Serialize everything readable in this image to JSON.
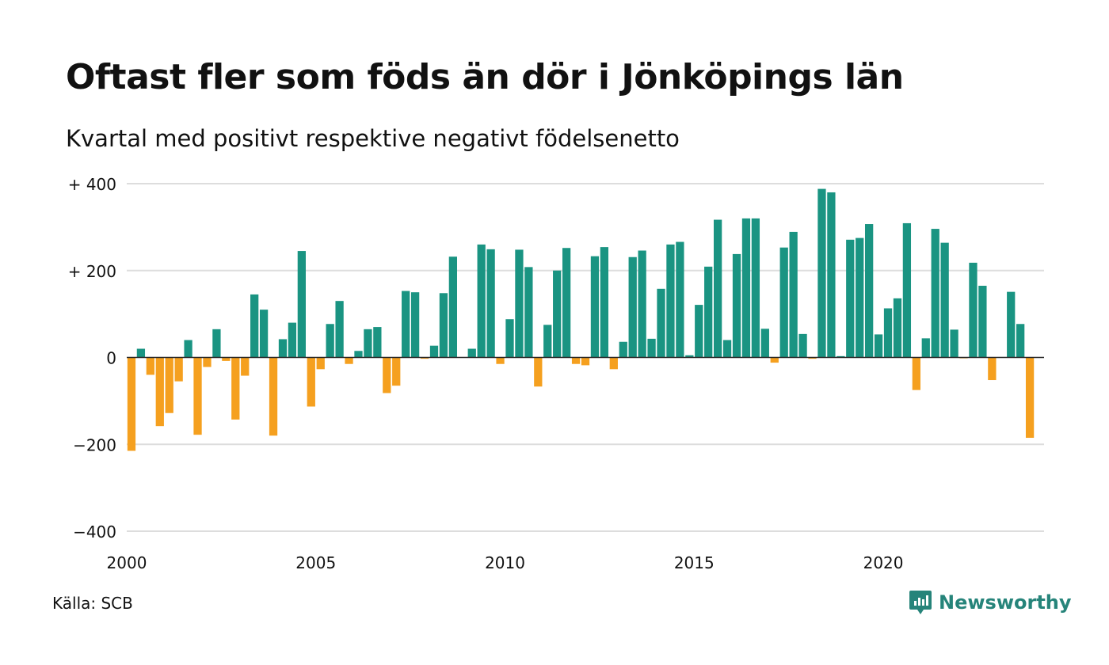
{
  "title": "Oftast fler som föds än dör i Jönköpings län",
  "subtitle": "Kvartal med positivt respektive negativt födelsenetto",
  "source": "Källa: SCB",
  "brand": {
    "name": "Newsworthy",
    "icon": "newsworthy-logo-icon",
    "color": "#26847a"
  },
  "colors": {
    "positive": "#1a9482",
    "negative": "#f5a01f",
    "grid": "#dddddd",
    "zero": "#222222"
  },
  "chart_data": {
    "type": "bar",
    "title": "Oftast fler som föds än dör i Jönköpings län",
    "subtitle": "Kvartal med positivt respektive negativt födelsenetto",
    "xlabel": "",
    "ylabel": "",
    "ylim": [
      -400,
      400
    ],
    "yticks": [
      400,
      200,
      0,
      -200,
      -400
    ],
    "ytick_labels": [
      "+ 400",
      "+ 200",
      "0",
      "−200",
      "−400"
    ],
    "xlim": [
      2000,
      2024.25
    ],
    "xticks": [
      2000,
      2005,
      2010,
      2015,
      2020
    ],
    "xtick_labels": [
      "2000",
      "2005",
      "2010",
      "2015",
      "2020"
    ],
    "grid": true,
    "start_year": 2000,
    "periods_per_year": 4,
    "values": [
      -215,
      20,
      -40,
      -158,
      -128,
      -55,
      40,
      -178,
      -22,
      65,
      -8,
      -143,
      -42,
      145,
      110,
      -180,
      42,
      80,
      245,
      -113,
      -27,
      77,
      130,
      -15,
      15,
      65,
      70,
      -82,
      -65,
      153,
      150,
      -3,
      27,
      148,
      232,
      0,
      20,
      260,
      249,
      -15,
      88,
      248,
      208,
      -67,
      75,
      200,
      252,
      -15,
      -18,
      233,
      254,
      -27,
      36,
      231,
      246,
      43,
      158,
      260,
      266,
      5,
      121,
      209,
      317,
      40,
      238,
      320,
      320,
      66,
      -12,
      253,
      289,
      54,
      -3,
      388,
      380,
      3,
      271,
      275,
      307,
      53,
      113,
      136,
      309,
      -75,
      44,
      296,
      264,
      64,
      -2,
      218,
      165,
      -52,
      1,
      151,
      77,
      -185
    ]
  }
}
